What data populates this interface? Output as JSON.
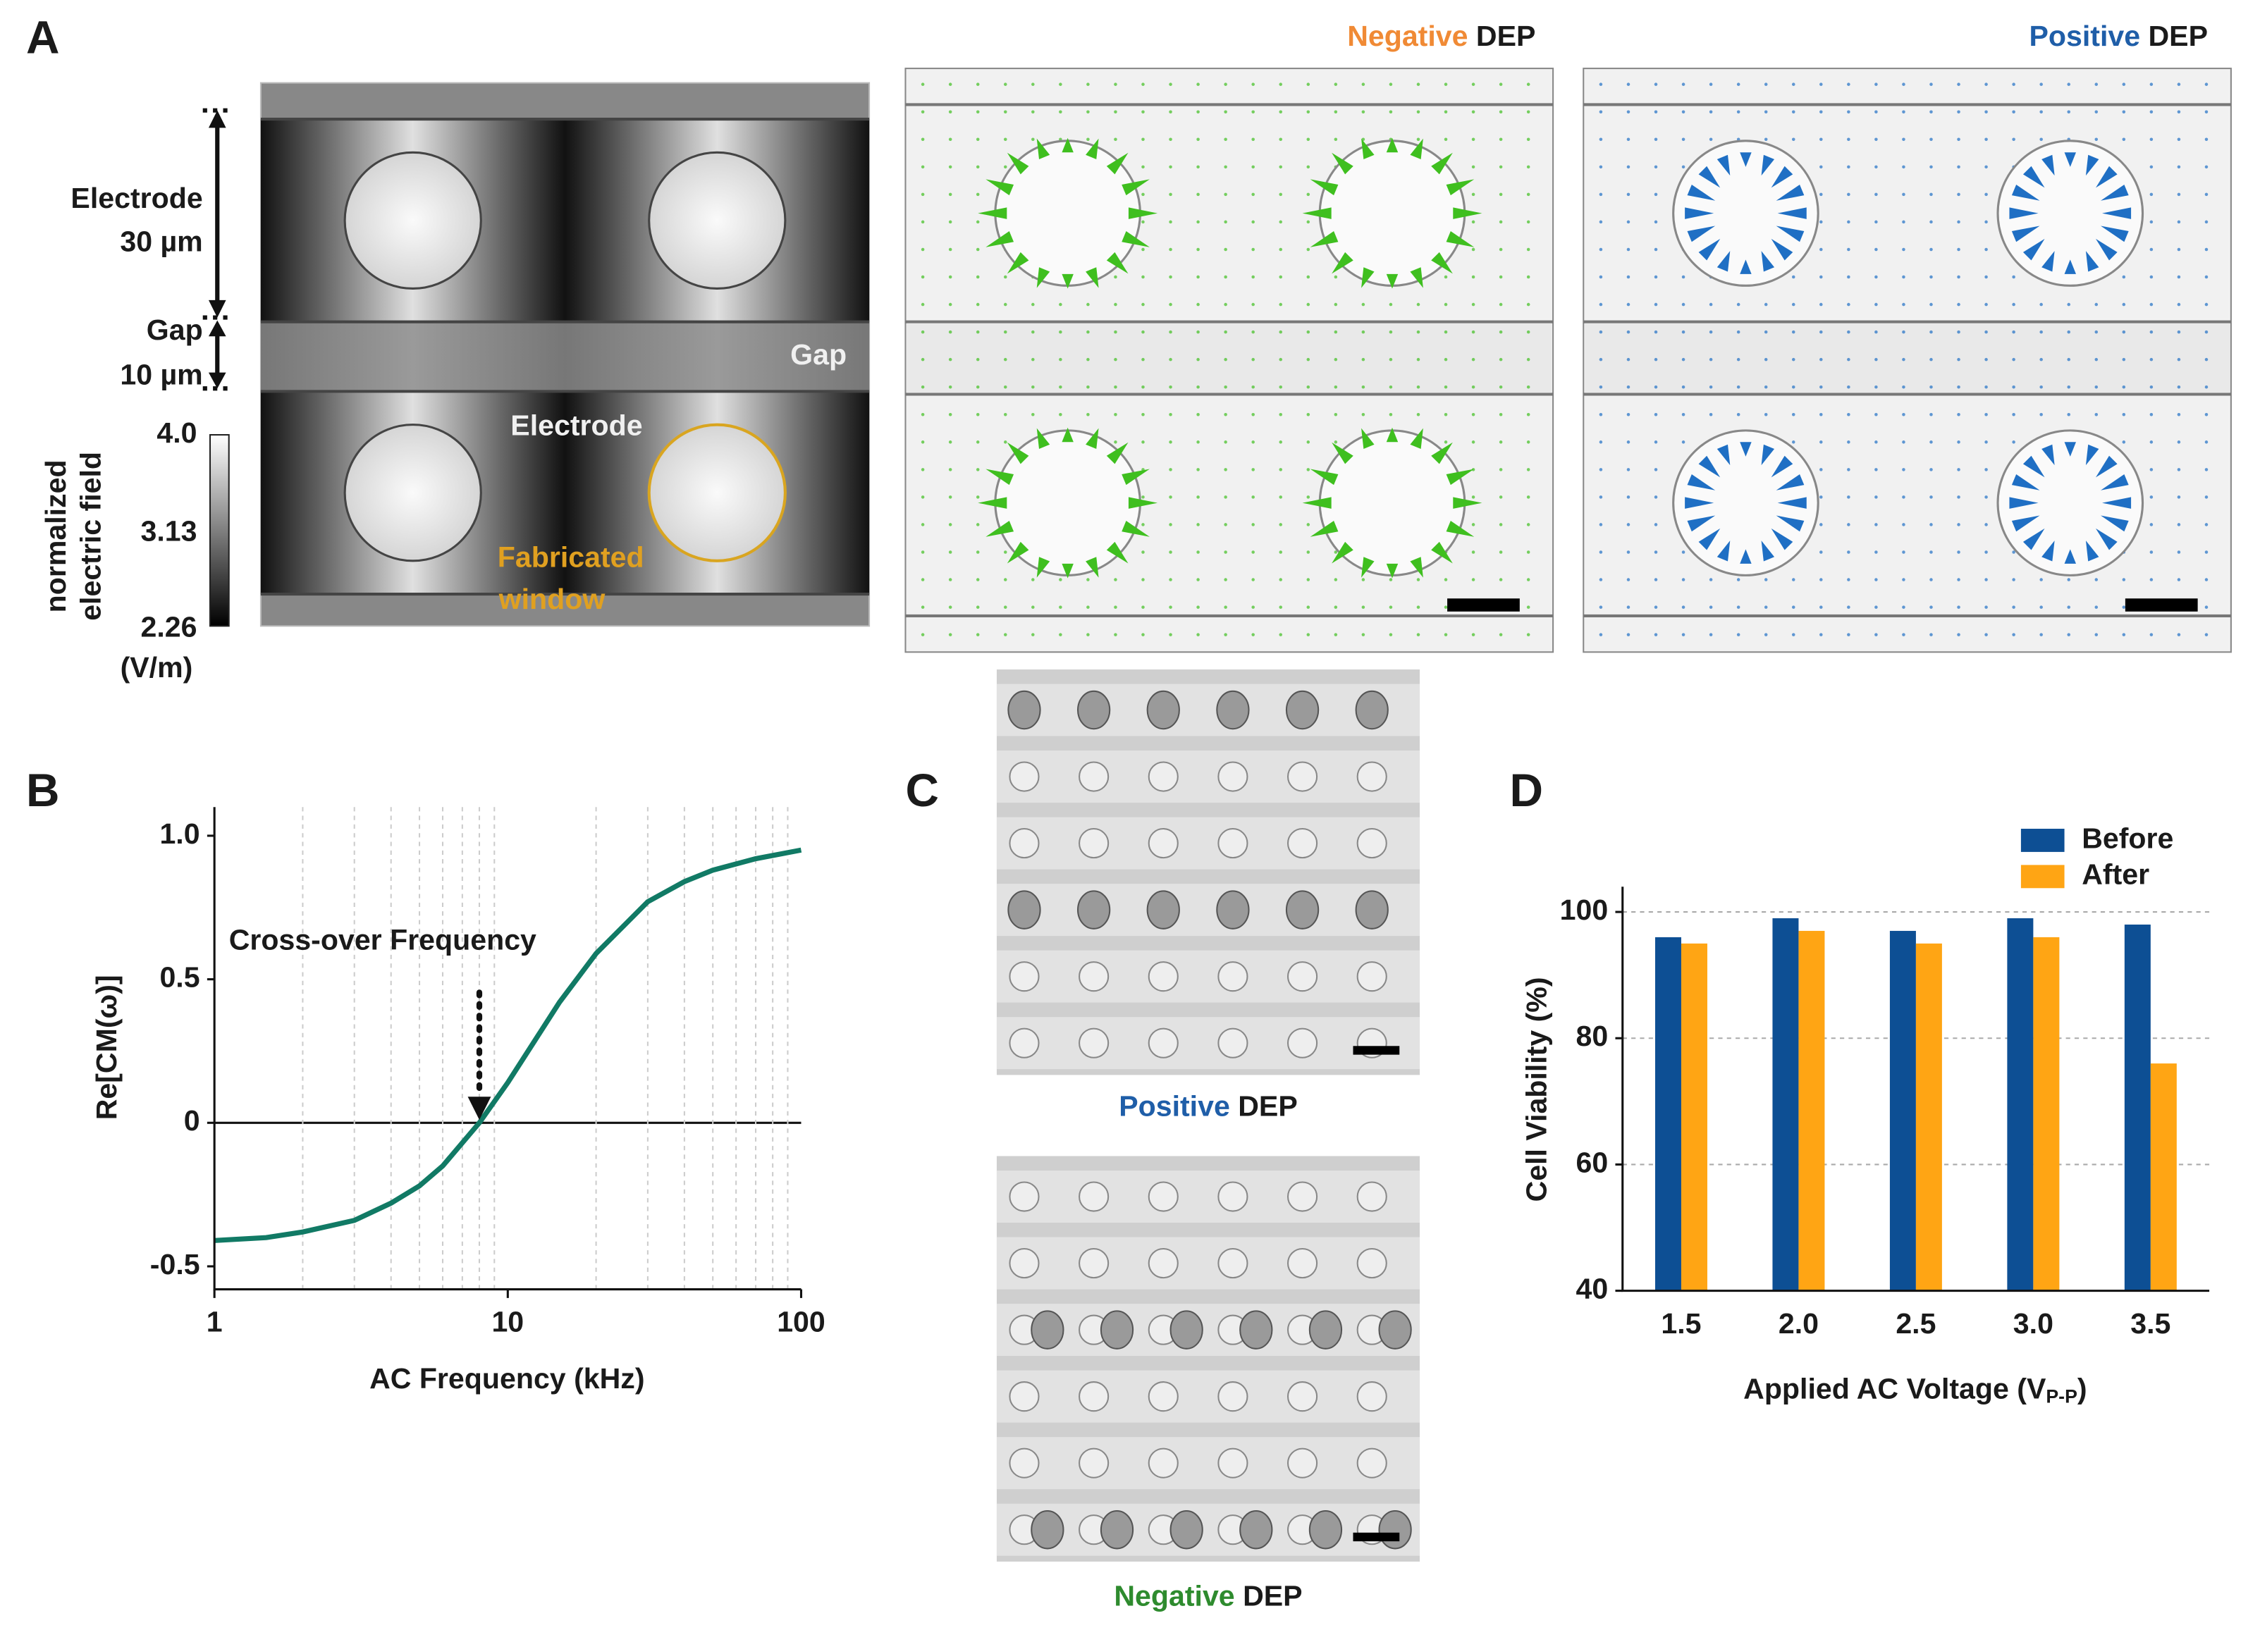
{
  "figure": {
    "panel_labels": [
      "A",
      "B",
      "C",
      "D"
    ],
    "panel_a": {
      "electrode_label": "Electrode",
      "electrode_size": "30 µm",
      "gap_label": "Gap",
      "gap_size": "10 µm",
      "colorbar": {
        "title_lines": [
          "normalized",
          "electric field"
        ],
        "ticks": [
          "4.0",
          "3.13",
          "2.26"
        ],
        "unit": "(V/m)"
      },
      "field_labels": {
        "gap": "Gap",
        "electrode": "Electrode",
        "window_lines": [
          "Fabricated",
          "window"
        ]
      },
      "negative_title": [
        "Negative",
        "DEP"
      ],
      "positive_title": [
        "Positive",
        "DEP"
      ]
    },
    "panel_c": {
      "positive_caption": [
        "Positive",
        "DEP"
      ],
      "negative_caption": [
        "Negative",
        "DEP"
      ]
    }
  },
  "chart_data": [
    {
      "type": "line",
      "y_label": "Re[CM(ω)]",
      "x_label": "AC Frequency (kHz)",
      "log_x": true,
      "x": [
        1,
        1.5,
        2,
        3,
        4,
        5,
        6,
        8,
        10,
        15,
        20,
        30,
        40,
        50,
        70,
        100
      ],
      "series": [
        {
          "color": "#117a65",
          "values": [
            -0.41,
            -0.4,
            -0.38,
            -0.34,
            -0.28,
            -0.22,
            -0.15,
            0,
            0.14,
            0.42,
            0.59,
            0.77,
            0.84,
            0.88,
            0.92,
            0.95
          ]
        }
      ],
      "xlim": [
        1,
        100
      ],
      "xticks": [
        1,
        10,
        100
      ],
      "ylim": [
        -0.58,
        1.1
      ],
      "yticks": [
        {
          "value": -0.5,
          "label": "-0.5"
        },
        0,
        0.5,
        {
          "value": 1,
          "label": "1.0"
        }
      ],
      "annotation": "Cross-over Frequency",
      "grid": true
    },
    {
      "type": "bar",
      "y_label": "Cell Viability (%)",
      "x_label": {
        "text": "Applied AC Voltage (V",
        "subscript": "P-P",
        "suffix": ")"
      },
      "categories": [
        "1.5",
        "2.0",
        "2.5",
        "3.0",
        "3.5"
      ],
      "series": [
        {
          "name": "Before",
          "color": "#0d4f94",
          "values": [
            96,
            99,
            97,
            99,
            98
          ]
        },
        {
          "name": "After",
          "color": "#ffa514",
          "values": [
            95,
            97,
            95,
            96,
            76
          ]
        }
      ],
      "ylim": [
        40,
        104
      ],
      "yticks": [
        40,
        60,
        80,
        100
      ],
      "grid": true,
      "legend": "top-right"
    }
  ]
}
